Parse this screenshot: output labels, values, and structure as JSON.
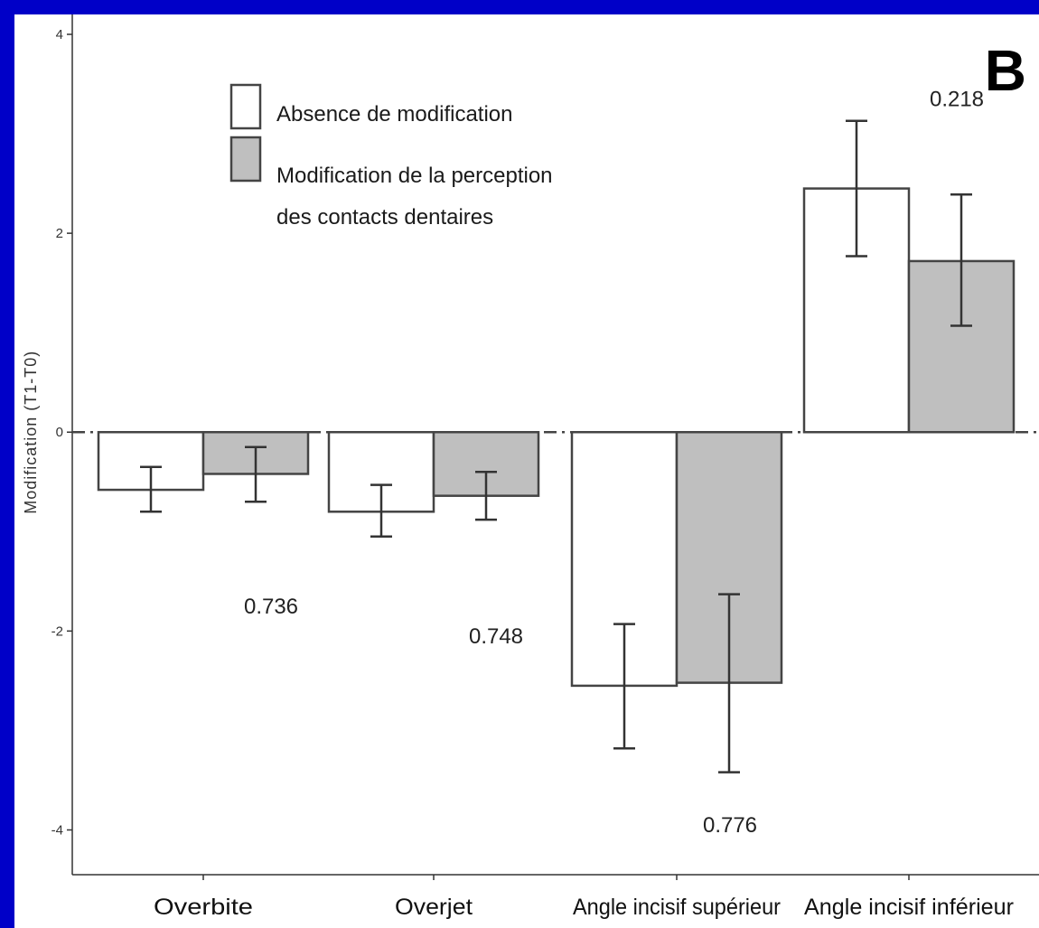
{
  "panel_letter": "B",
  "chart_data": {
    "type": "bar",
    "ylabel": "Modification (T1-T0)",
    "xlabel": "",
    "ylim": [
      -4.45,
      4.2
    ],
    "yticks": [
      -4,
      -2,
      0,
      2,
      4
    ],
    "grid": false,
    "legend_position": "top-left",
    "categories": [
      "Overbite",
      "Overjet",
      "Angle incisif supérieur",
      "Angle incisif inférieur"
    ],
    "series": [
      {
        "name": "Absence de modification",
        "color": "#ffffff",
        "values": [
          -0.58,
          -0.8,
          -2.55,
          2.45
        ],
        "error_low": [
          -0.8,
          -1.05,
          -3.18,
          1.77
        ],
        "error_high": [
          -0.35,
          -0.53,
          -1.93,
          3.13
        ]
      },
      {
        "name": "Modification de la perception des contacts dentaires",
        "color": "#bfbfbf",
        "values": [
          -0.42,
          -0.64,
          -2.52,
          1.72
        ],
        "error_low": [
          -0.7,
          -0.88,
          -3.42,
          1.07
        ],
        "error_high": [
          -0.15,
          -0.4,
          -1.63,
          2.39
        ]
      }
    ],
    "legend_lines": [
      [
        "Absence de modification"
      ],
      [
        "Modification de la perception",
        "des contacts dentaires"
      ]
    ],
    "annotations": [
      {
        "text": "0.736",
        "category": 0,
        "y": -1.75
      },
      {
        "text": "0.748",
        "category": 1,
        "y": -2.05
      },
      {
        "text": "0.776",
        "category": 2,
        "y": -3.95
      },
      {
        "text": "0.218",
        "category": 3,
        "y": 3.35
      }
    ],
    "reference_line": 0
  }
}
